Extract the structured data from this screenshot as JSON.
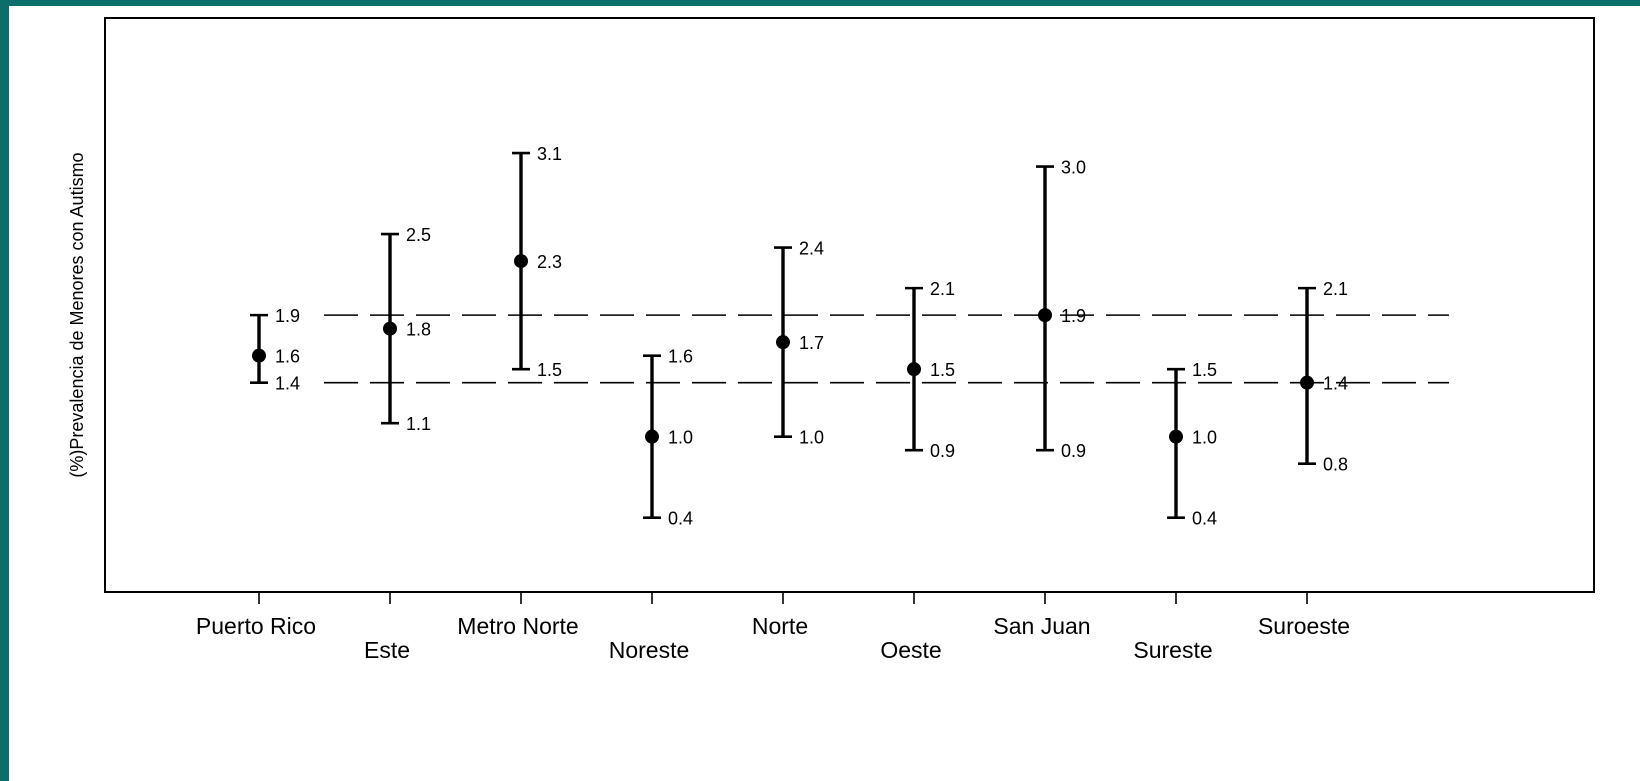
{
  "chart_data": {
    "type": "errorbar",
    "ylabel": "(%)Prevalencia de Menores con Autismo",
    "ylim": [
      -0.15,
      4.1
    ],
    "grid": false,
    "reference_lines": [
      1.9,
      1.4
    ],
    "categories": [
      "Puerto Rico",
      "Este",
      "Metro Norte",
      "Noreste",
      "Norte",
      "Oeste",
      "San Juan",
      "Sureste",
      "Suroeste"
    ],
    "points": [
      {
        "category": "Puerto Rico",
        "estimate": 1.6,
        "lower": 1.4,
        "upper": 1.9
      },
      {
        "category": "Este",
        "estimate": 1.8,
        "lower": 1.1,
        "upper": 2.5
      },
      {
        "category": "Metro Norte",
        "estimate": 2.3,
        "lower": 1.5,
        "upper": 3.1
      },
      {
        "category": "Noreste",
        "estimate": 1.0,
        "lower": 0.4,
        "upper": 1.6
      },
      {
        "category": "Norte",
        "estimate": 1.7,
        "lower": 1.0,
        "upper": 2.4
      },
      {
        "category": "Oeste",
        "estimate": 1.5,
        "lower": 0.9,
        "upper": 2.1
      },
      {
        "category": "San Juan",
        "estimate": 1.9,
        "lower": 0.9,
        "upper": 3.0
      },
      {
        "category": "Sureste",
        "estimate": 1.0,
        "lower": 0.4,
        "upper": 1.5
      },
      {
        "category": "Suroeste",
        "estimate": 1.4,
        "lower": 0.8,
        "upper": 2.1
      }
    ]
  },
  "colors": {
    "background": "#0c6e6a",
    "slide": "#ffffff",
    "ink": "#000000"
  }
}
